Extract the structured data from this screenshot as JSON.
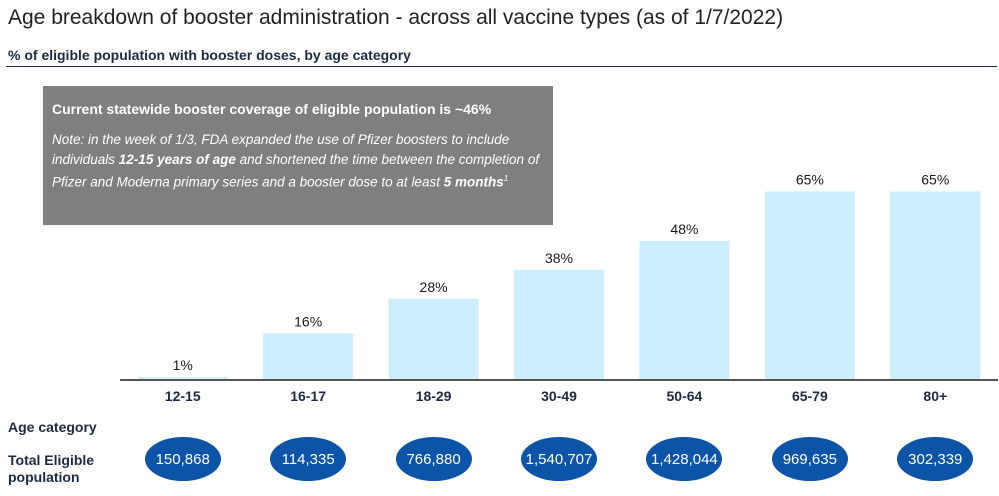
{
  "title": "Age breakdown of booster administration - across all vaccine types (as of 1/7/2022)",
  "subtitle": "% of eligible population with booster doses, by age category",
  "callout": {
    "headline": "Current statewide booster coverage of eligible population is ~46%",
    "note_prefix": "Note: in the week of 1/3, FDA expanded the use of Pfizer boosters to include individuals ",
    "note_bold_1": "12-15 years of age",
    "note_middle": " and shortened the time between the completion of Pfizer and Moderna primary series and a booster dose to at least ",
    "note_bold_2": "5 months",
    "note_footnote": "1"
  },
  "row_labels": {
    "age_category": "Age category",
    "total_eligible": "Total Eligible population"
  },
  "colors": {
    "bar": "#cdeefc",
    "axis": "#555555",
    "pill": "#0b54a8"
  },
  "chart_data": {
    "type": "bar",
    "title": "Age breakdown of booster administration - across all vaccine types (as of 1/7/2022)",
    "subtitle": "% of eligible population with booster doses, by age category",
    "xlabel": "Age category",
    "ylabel": "",
    "categories": [
      "12-15",
      "16-17",
      "18-29",
      "30-49",
      "50-64",
      "65-79",
      "80+"
    ],
    "values": [
      1,
      16,
      28,
      38,
      48,
      65,
      65
    ],
    "data_labels": [
      "1%",
      "16%",
      "28%",
      "38%",
      "48%",
      "65%",
      "65%"
    ],
    "ylim": [
      0,
      100
    ],
    "grid": false,
    "total_eligible_population": [
      "150,868",
      "114,335",
      "766,880",
      "1,540,707",
      "1,428,044",
      "969,635",
      "302,339"
    ]
  }
}
